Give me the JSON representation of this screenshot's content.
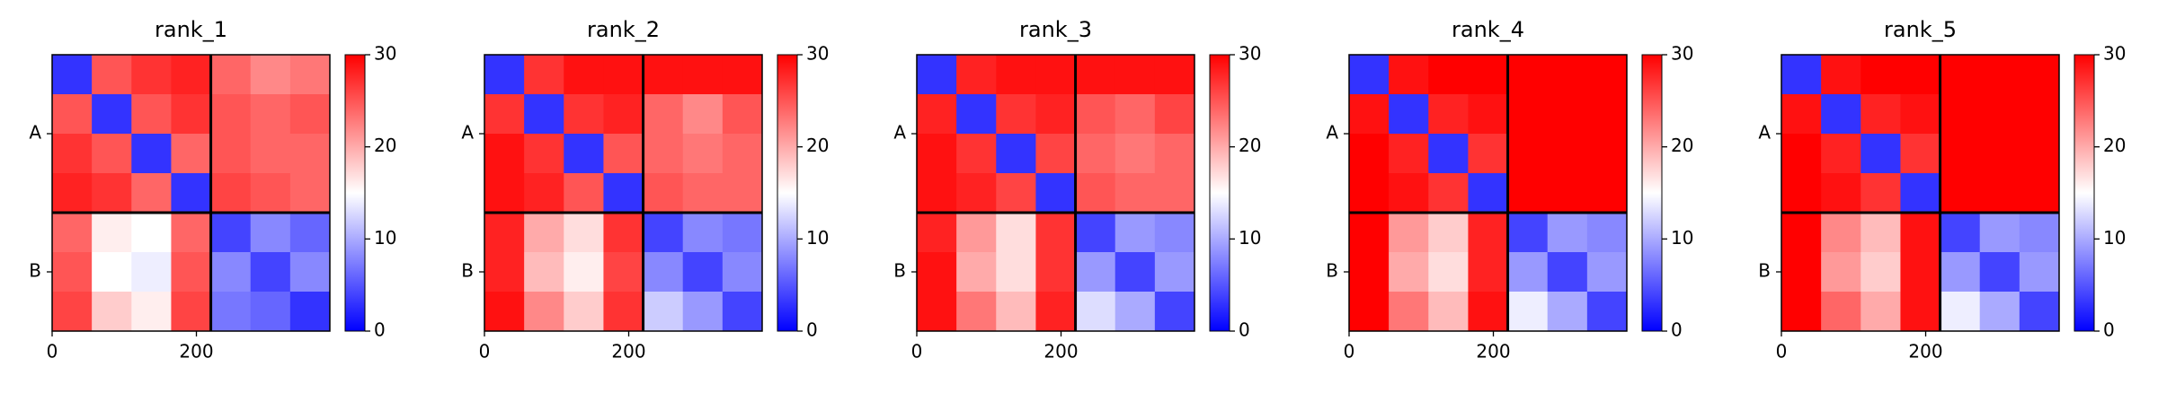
{
  "chart_data": [
    {
      "type": "heatmap",
      "title": "rank_1",
      "bins": [
        0,
        55,
        110,
        165,
        220,
        275,
        330,
        385
      ],
      "xlim": [
        0,
        385
      ],
      "ylim": [
        0,
        385
      ],
      "xticks": [
        0,
        200
      ],
      "yticks": [
        {
          "value": 110,
          "label": "A"
        },
        {
          "value": 302.5,
          "label": "B"
        }
      ],
      "chain_breaks": [
        220
      ],
      "clim": [
        0,
        30
      ],
      "cticks": [
        0,
        10,
        20,
        30
      ],
      "z": [
        [
          3,
          25,
          27,
          28,
          24,
          22,
          23
        ],
        [
          25,
          3,
          25,
          27,
          25,
          24,
          25
        ],
        [
          27,
          25,
          3,
          24,
          25,
          24,
          24
        ],
        [
          28,
          27,
          24,
          3,
          26,
          25,
          24
        ],
        [
          24,
          16,
          15,
          24,
          4,
          8,
          6
        ],
        [
          25,
          15,
          14,
          25,
          8,
          4,
          8
        ],
        [
          26,
          18,
          16,
          26,
          7,
          6,
          3
        ]
      ]
    },
    {
      "type": "heatmap",
      "title": "rank_2",
      "bins": [
        0,
        55,
        110,
        165,
        220,
        275,
        330,
        385
      ],
      "xlim": [
        0,
        385
      ],
      "ylim": [
        0,
        385
      ],
      "xticks": [
        0,
        200
      ],
      "yticks": [
        {
          "value": 110,
          "label": "A"
        },
        {
          "value": 302.5,
          "label": "B"
        }
      ],
      "chain_breaks": [
        220
      ],
      "clim": [
        0,
        30
      ],
      "cticks": [
        0,
        10,
        20,
        30
      ],
      "z": [
        [
          3,
          27,
          29,
          29,
          29,
          29,
          29
        ],
        [
          27,
          3,
          27,
          28,
          24,
          22,
          25
        ],
        [
          29,
          27,
          3,
          25,
          24,
          23,
          24
        ],
        [
          29,
          28,
          25,
          3,
          25,
          24,
          24
        ],
        [
          28,
          20,
          17,
          27,
          4,
          8,
          7
        ],
        [
          28,
          19,
          16,
          26,
          8,
          4,
          8
        ],
        [
          29,
          22,
          18,
          27,
          12,
          9,
          4
        ]
      ]
    },
    {
      "type": "heatmap",
      "title": "rank_3",
      "bins": [
        0,
        55,
        110,
        165,
        220,
        275,
        330,
        385
      ],
      "xlim": [
        0,
        385
      ],
      "ylim": [
        0,
        385
      ],
      "xticks": [
        0,
        200
      ],
      "yticks": [
        {
          "value": 110,
          "label": "A"
        },
        {
          "value": 302.5,
          "label": "B"
        }
      ],
      "chain_breaks": [
        220
      ],
      "clim": [
        0,
        30
      ],
      "cticks": [
        0,
        10,
        20,
        30
      ],
      "z": [
        [
          3,
          28,
          29,
          29,
          29,
          29,
          29
        ],
        [
          28,
          3,
          27,
          28,
          25,
          24,
          26
        ],
        [
          29,
          27,
          3,
          26,
          24,
          23,
          24
        ],
        [
          29,
          28,
          26,
          3,
          25,
          24,
          24
        ],
        [
          28,
          21,
          17,
          27,
          4,
          9,
          8
        ],
        [
          29,
          20,
          17,
          27,
          9,
          4,
          9
        ],
        [
          29,
          23,
          19,
          28,
          13,
          10,
          4
        ]
      ]
    },
    {
      "type": "heatmap",
      "title": "rank_4",
      "bins": [
        0,
        55,
        110,
        165,
        220,
        275,
        330,
        385
      ],
      "xlim": [
        0,
        385
      ],
      "ylim": [
        0,
        385
      ],
      "xticks": [
        0,
        200
      ],
      "yticks": [
        {
          "value": 110,
          "label": "A"
        },
        {
          "value": 302.5,
          "label": "B"
        }
      ],
      "chain_breaks": [
        220
      ],
      "clim": [
        0,
        30
      ],
      "cticks": [
        0,
        10,
        20,
        30
      ],
      "z": [
        [
          3,
          29,
          30,
          30,
          30,
          30,
          30
        ],
        [
          29,
          3,
          28,
          29,
          30,
          30,
          30
        ],
        [
          30,
          28,
          3,
          27,
          30,
          30,
          30
        ],
        [
          30,
          29,
          27,
          3,
          30,
          30,
          30
        ],
        [
          30,
          21,
          18,
          28,
          4,
          9,
          8
        ],
        [
          30,
          20,
          17,
          28,
          9,
          4,
          9
        ],
        [
          30,
          23,
          19,
          29,
          14,
          10,
          4
        ]
      ]
    },
    {
      "type": "heatmap",
      "title": "rank_5",
      "bins": [
        0,
        55,
        110,
        165,
        220,
        275,
        330,
        385
      ],
      "xlim": [
        0,
        385
      ],
      "ylim": [
        0,
        385
      ],
      "xticks": [
        0,
        200
      ],
      "yticks": [
        {
          "value": 110,
          "label": "A"
        },
        {
          "value": 302.5,
          "label": "B"
        }
      ],
      "chain_breaks": [
        220
      ],
      "clim": [
        0,
        30
      ],
      "cticks": [
        0,
        10,
        20,
        30
      ],
      "z": [
        [
          3,
          29,
          30,
          30,
          30,
          30,
          30
        ],
        [
          29,
          3,
          28,
          29,
          30,
          30,
          30
        ],
        [
          30,
          28,
          3,
          27,
          30,
          30,
          30
        ],
        [
          30,
          29,
          27,
          3,
          30,
          30,
          30
        ],
        [
          30,
          22,
          19,
          29,
          4,
          9,
          8
        ],
        [
          30,
          21,
          18,
          29,
          9,
          4,
          9
        ],
        [
          30,
          24,
          20,
          29,
          14,
          10,
          4
        ]
      ]
    }
  ]
}
